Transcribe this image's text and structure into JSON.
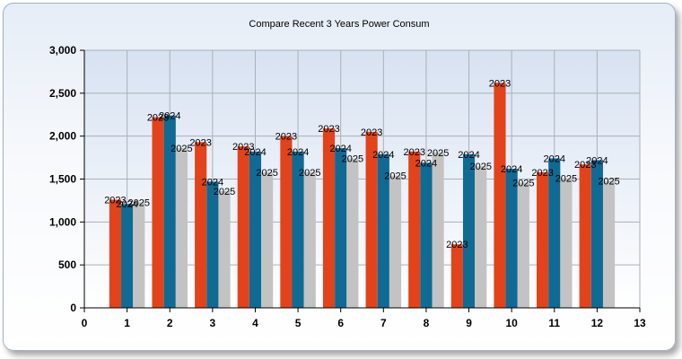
{
  "chart_data": {
    "type": "bar",
    "title": "Compare Recent 3 Years Power Consum",
    "xlabel": "",
    "ylabel": "",
    "xlim": [
      0,
      13
    ],
    "ylim": [
      0,
      3000
    ],
    "xticks": [
      "0",
      "1",
      "2",
      "3",
      "4",
      "5",
      "6",
      "7",
      "8",
      "9",
      "10",
      "11",
      "12",
      "13"
    ],
    "yticks": [
      "0",
      "500",
      "1,000",
      "1,500",
      "2,000",
      "2,500",
      "3,000"
    ],
    "ytick_values": [
      0,
      500,
      1000,
      1500,
      2000,
      2500,
      3000
    ],
    "categories": [
      1,
      2,
      3,
      4,
      5,
      6,
      7,
      8,
      9,
      10,
      11,
      12
    ],
    "grid": true,
    "legend": "none",
    "series": [
      {
        "label": "2023",
        "color": "#e2431b",
        "values": [
          1260,
          2220,
          1930,
          1880,
          2000,
          2090,
          2050,
          1820,
          740,
          2620,
          1580,
          1670
        ]
      },
      {
        "label": "2024",
        "color": "#0f6a94",
        "values": [
          1210,
          2240,
          1470,
          1820,
          1820,
          1860,
          1790,
          1690,
          1790,
          1620,
          1740,
          1720
        ]
      },
      {
        "label": "2025",
        "color": "#c3c3c3",
        "values": [
          1230,
          1860,
          1360,
          1580,
          1580,
          1740,
          1540,
          1810,
          1650,
          1460,
          1510,
          1480
        ]
      }
    ]
  }
}
